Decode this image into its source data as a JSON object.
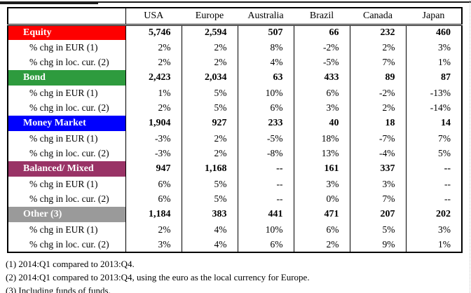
{
  "table": {
    "columns": [
      "USA",
      "Europe",
      "Australia",
      "Brazil",
      "Canada",
      "Japan"
    ],
    "sections": [
      {
        "name": "Equity",
        "color": "#fe0000",
        "values": [
          "5,746",
          "2,594",
          "507",
          "66",
          "232",
          "460"
        ],
        "rows": [
          {
            "label": "% chg in EUR (1)",
            "values": [
              "2%",
              "2%",
              "8%",
              "-2%",
              "2%",
              "3%"
            ]
          },
          {
            "label": "% chg in loc. cur. (2)",
            "values": [
              "2%",
              "2%",
              "4%",
              "-5%",
              "7%",
              "1%"
            ]
          }
        ]
      },
      {
        "name": "Bond",
        "color": "#2e9b3e",
        "values": [
          "2,423",
          "2,034",
          "63",
          "433",
          "89",
          "87"
        ],
        "rows": [
          {
            "label": "% chg in EUR (1)",
            "values": [
              "1%",
              "5%",
              "10%",
              "6%",
              "-2%",
              "-13%"
            ]
          },
          {
            "label": "% chg in loc. cur. (2)",
            "values": [
              "2%",
              "5%",
              "6%",
              "3%",
              "2%",
              "-14%"
            ]
          }
        ]
      },
      {
        "name": "Money Market",
        "color": "#0000fe",
        "values": [
          "1,904",
          "927",
          "233",
          "40",
          "18",
          "14"
        ],
        "rows": [
          {
            "label": "% chg in EUR (1)",
            "values": [
              "-3%",
              "2%",
              "-5%",
              "18%",
              "-7%",
              "7%"
            ]
          },
          {
            "label": "% chg in loc. cur. (2)",
            "values": [
              "-3%",
              "2%",
              "-8%",
              "13%",
              "-4%",
              "5%"
            ]
          }
        ]
      },
      {
        "name": "Balanced/ Mixed",
        "color": "#993366",
        "values": [
          "947",
          "1,168",
          "--",
          "161",
          "337",
          "--"
        ],
        "rows": [
          {
            "label": "% chg in EUR (1)",
            "values": [
              "6%",
              "5%",
              "--",
              "3%",
              "3%",
              "--"
            ]
          },
          {
            "label": "% chg in loc. cur. (2)",
            "values": [
              "6%",
              "5%",
              "--",
              "0%",
              "7%",
              "--"
            ]
          }
        ]
      },
      {
        "name": "Other (3)",
        "color": "#9a9a9a",
        "values": [
          "1,184",
          "383",
          "441",
          "471",
          "207",
          "202"
        ],
        "rows": [
          {
            "label": "% chg in EUR (1)",
            "values": [
              "2%",
              "4%",
              "10%",
              "6%",
              "5%",
              "3%"
            ]
          },
          {
            "label": "% chg in loc. cur. (2)",
            "values": [
              "3%",
              "4%",
              "6%",
              "2%",
              "9%",
              "1%"
            ]
          }
        ]
      }
    ]
  },
  "footnotes": [
    "(1) 2014:Q1  compared to 2013:Q4.",
    "(2) 2014:Q1  compared to 2013:Q4, using the euro as the local currency for Europe.",
    "(3) Including funds of funds."
  ]
}
